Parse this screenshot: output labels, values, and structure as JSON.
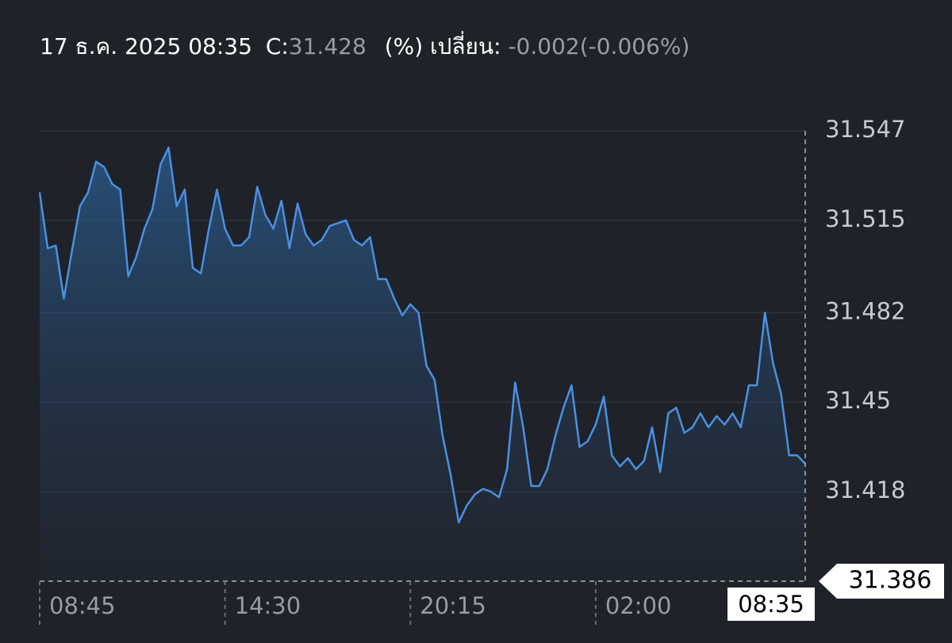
{
  "chart_data": {
    "type": "area",
    "header": {
      "datetime": "17 ธ.ค. 2025 08:35",
      "close_label": "C:",
      "close": "31.428",
      "change_label": "(%) เปลี่ยน:",
      "change": "-0.002(-0.006%)"
    },
    "categories": [
      "08:45",
      null,
      null,
      null,
      null,
      null,
      null,
      null,
      null,
      null,
      null,
      null,
      null,
      null,
      null,
      null,
      null,
      null,
      null,
      null,
      null,
      null,
      null,
      "14:30",
      null,
      null,
      null,
      null,
      null,
      null,
      null,
      null,
      null,
      null,
      null,
      null,
      null,
      null,
      null,
      null,
      null,
      null,
      null,
      null,
      null,
      null,
      "20:15",
      null,
      null,
      null,
      null,
      null,
      null,
      null,
      null,
      null,
      null,
      null,
      null,
      null,
      null,
      null,
      null,
      null,
      null,
      null,
      null,
      null,
      null,
      "02:00",
      null,
      null,
      null,
      null,
      null,
      null,
      null,
      null,
      null,
      null,
      null,
      null,
      null,
      null,
      null,
      null,
      null,
      null,
      null,
      null,
      null,
      null,
      null,
      null,
      null,
      "08:35"
    ],
    "values": [
      31.525,
      31.505,
      31.506,
      31.487,
      31.504,
      31.52,
      31.525,
      31.536,
      31.534,
      31.528,
      31.526,
      31.495,
      31.502,
      31.512,
      31.519,
      31.535,
      31.541,
      31.52,
      31.526,
      31.498,
      31.496,
      31.512,
      31.526,
      31.512,
      31.506,
      31.506,
      31.509,
      31.527,
      31.517,
      31.512,
      31.522,
      31.505,
      31.521,
      31.51,
      31.506,
      31.508,
      31.513,
      31.514,
      31.515,
      31.508,
      31.506,
      31.509,
      31.494,
      31.494,
      31.487,
      31.481,
      31.485,
      31.482,
      31.463,
      31.458,
      31.438,
      31.424,
      31.407,
      31.413,
      31.417,
      31.419,
      31.418,
      31.416,
      31.426,
      31.457,
      31.441,
      31.42,
      31.42,
      31.426,
      31.438,
      31.448,
      31.456,
      31.434,
      31.436,
      31.442,
      31.452,
      31.431,
      31.427,
      31.43,
      31.426,
      31.429,
      31.441,
      31.425,
      31.446,
      31.448,
      31.439,
      31.441,
      31.446,
      31.441,
      31.445,
      31.442,
      31.446,
      31.441,
      31.456,
      31.456,
      31.482,
      31.464,
      31.453,
      31.431,
      31.431,
      31.428
    ],
    "color": "#4a90e2",
    "ylim": [
      31.386,
      31.547
    ],
    "yticks": [
      31.547,
      31.515,
      31.482,
      31.45,
      {
        "value": 31.418,
        "label": "31.418"
      }
    ],
    "price_tag": 31.386,
    "grid": true
  }
}
